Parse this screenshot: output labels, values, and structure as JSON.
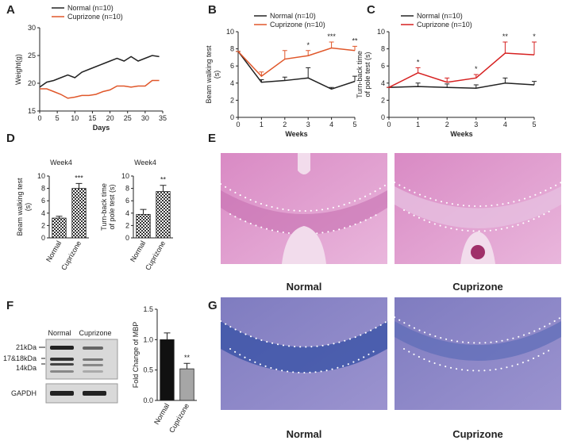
{
  "panels": {
    "letters": [
      "A",
      "B",
      "C",
      "D",
      "E",
      "F",
      "G"
    ]
  },
  "histology_he": {
    "labels": [
      "Normal",
      "Cuprizone"
    ]
  },
  "histology_lfb": {
    "labels": [
      "Normal",
      "Cuprizone"
    ]
  },
  "western_blot": {
    "lanes": [
      "Normal",
      "Cuprizone"
    ],
    "markers": [
      "21kDa",
      "17&18kDa",
      "14kDa"
    ],
    "loading_control": "GAPDH"
  },
  "chart_data": [
    {
      "type": "line",
      "xlabel": "Days",
      "ylabel": [
        "Weight(g)"
      ],
      "x": [
        0,
        2,
        4,
        6,
        8,
        10,
        12,
        14,
        16,
        18,
        20,
        22,
        24,
        26,
        28,
        30,
        32,
        34
      ],
      "xlim": [
        0,
        35
      ],
      "xticks": [
        0,
        5,
        10,
        15,
        20,
        25,
        30,
        35
      ],
      "ylim": [
        15,
        30
      ],
      "yticks": [
        15,
        20,
        25,
        30
      ],
      "series": [
        {
          "name": "Normal (n=10)",
          "color": "#222222",
          "values": [
            19.3,
            20.2,
            20.5,
            21.0,
            21.5,
            21.0,
            22.0,
            22.5,
            23.0,
            23.5,
            24.0,
            24.5,
            24.0,
            24.8,
            24.0,
            24.5,
            25.0,
            24.8
          ]
        },
        {
          "name": "Cuprizone (n=10)",
          "color": "#e0572a",
          "values": [
            19.0,
            19.0,
            18.5,
            18.0,
            17.3,
            17.5,
            17.8,
            17.8,
            18.0,
            18.5,
            18.8,
            19.5,
            19.5,
            19.3,
            19.5,
            19.5,
            20.5,
            20.5
          ]
        }
      ]
    },
    {
      "type": "line",
      "xlabel": "Weeks",
      "ylabel": [
        "Beam walking test",
        "(s)"
      ],
      "x": [
        0,
        1,
        2,
        3,
        4,
        5
      ],
      "xlim": [
        0,
        5
      ],
      "xticks": [
        0,
        1,
        2,
        3,
        4,
        5
      ],
      "ylim": [
        0,
        10
      ],
      "yticks": [
        0,
        2,
        4,
        6,
        8,
        10
      ],
      "series": [
        {
          "name": "Normal (n=10)",
          "color": "#222222",
          "values": [
            7.7,
            4.1,
            4.3,
            4.6,
            3.3,
            4.2
          ],
          "errors": [
            0,
            0.3,
            0.4,
            1.2,
            0.2,
            0.6
          ]
        },
        {
          "name": "Cuprizone (n=10)",
          "color": "#e0572a",
          "values": [
            7.7,
            4.8,
            6.8,
            7.2,
            8.1,
            7.8
          ],
          "errors": [
            0,
            0.5,
            1.0,
            0.6,
            0.7,
            0.5
          ],
          "significance": [
            null,
            null,
            null,
            "*",
            "***",
            "**"
          ]
        }
      ]
    },
    {
      "type": "line",
      "xlabel": "Weeks",
      "ylabel": [
        "Turn-back  time",
        "of pole test (s)"
      ],
      "x": [
        0,
        1,
        2,
        3,
        4,
        5
      ],
      "xlim": [
        0,
        5
      ],
      "xticks": [
        0,
        1,
        2,
        3,
        4,
        5
      ],
      "ylim": [
        0,
        10
      ],
      "yticks": [
        0,
        2,
        4,
        6,
        8,
        10
      ],
      "series": [
        {
          "name": "Normal (n=10)",
          "color": "#222222",
          "values": [
            3.5,
            3.6,
            3.5,
            3.4,
            4.0,
            3.8
          ],
          "errors": [
            0,
            0.4,
            0.4,
            0.4,
            0.6,
            0.4
          ]
        },
        {
          "name": "Cuprizone (n=10)",
          "color": "#d62020",
          "values": [
            3.5,
            5.2,
            4.1,
            4.6,
            7.5,
            7.3
          ],
          "errors": [
            0,
            0.6,
            0.5,
            0.4,
            1.3,
            1.5
          ],
          "significance": [
            null,
            "*",
            null,
            "*",
            "**",
            "*"
          ]
        }
      ]
    },
    {
      "type": "bar",
      "title": "Week4",
      "ylabel": [
        "Beam walking test",
        "(s)"
      ],
      "categories": [
        "Normal",
        "Cuprizone"
      ],
      "values": [
        3.2,
        8.0
      ],
      "errors": [
        0.3,
        0.8
      ],
      "significance": [
        null,
        "***"
      ],
      "ylim": [
        0,
        10
      ],
      "yticks": [
        0,
        2,
        4,
        6,
        8,
        10
      ],
      "pattern": "checker"
    },
    {
      "type": "bar",
      "title": "Week4",
      "ylabel": [
        "Turn-back  time",
        "of pole test (s)"
      ],
      "categories": [
        "Normal",
        "Cuprizone"
      ],
      "values": [
        3.8,
        7.5
      ],
      "errors": [
        0.8,
        1.0
      ],
      "significance": [
        null,
        "**"
      ],
      "ylim": [
        0,
        10
      ],
      "yticks": [
        0,
        2,
        4,
        6,
        8,
        10
      ],
      "pattern": "checker"
    },
    {
      "type": "bar",
      "ylabel": [
        "Fold Change of MBP"
      ],
      "categories": [
        "Normal",
        "Cuprizone"
      ],
      "values": [
        1.0,
        0.52
      ],
      "errors": [
        0.11,
        0.09
      ],
      "significance": [
        null,
        "**"
      ],
      "colors": [
        "#111111",
        "#a6a6a6"
      ],
      "ylim": [
        0,
        1.5
      ],
      "yticks": [
        {
          "value": 0,
          "label": "0.0"
        },
        {
          "value": 0.5,
          "label": "0.5"
        },
        {
          "value": 1,
          "label": "1.0"
        },
        {
          "value": 1.5,
          "label": "1.5"
        }
      ]
    }
  ]
}
